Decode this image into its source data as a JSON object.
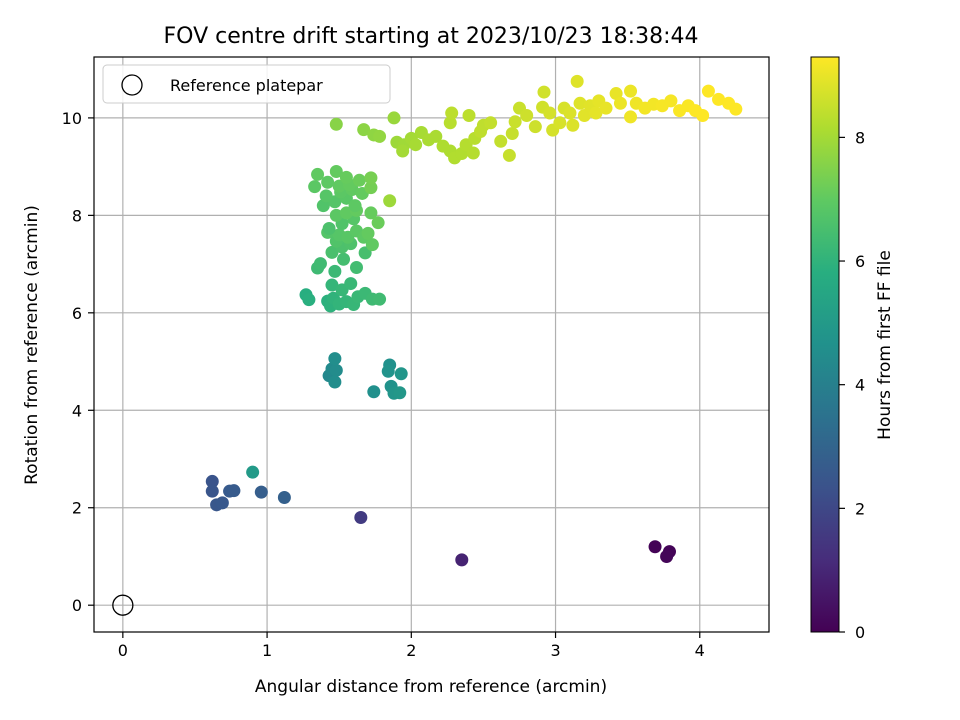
{
  "chart_data": {
    "type": "scatter",
    "title": "FOV centre drift starting at 2023/10/23 18:38:44",
    "xlabel": "Angular distance from reference (arcmin)",
    "ylabel": "Rotation from reference (arcmin)",
    "xlim": [
      -0.2,
      4.48
    ],
    "ylim": [
      -0.55,
      11.25
    ],
    "xticks": [
      0,
      1,
      2,
      3,
      4
    ],
    "yticks": [
      0,
      2,
      4,
      6,
      8,
      10
    ],
    "grid": true,
    "legend": {
      "placement": "top-left",
      "entries": [
        {
          "label": "Reference platepar",
          "marker": "open-circle"
        }
      ]
    },
    "reference_point": {
      "x": 0,
      "y": 0
    },
    "colorbar": {
      "label": "Hours from first FF file",
      "range": [
        0,
        9.3
      ],
      "ticks": [
        0,
        2,
        4,
        6,
        8
      ],
      "colormap": "viridis"
    },
    "series": [
      {
        "points": [
          [
            3.69,
            1.2,
            0.05
          ],
          [
            3.79,
            1.1,
            0.08
          ],
          [
            3.77,
            1.0,
            0.12
          ],
          [
            2.35,
            0.93,
            0.9
          ],
          [
            1.65,
            1.8,
            1.6
          ],
          [
            0.62,
            2.54,
            2.4
          ],
          [
            0.62,
            2.34,
            2.45
          ],
          [
            0.65,
            2.06,
            2.5
          ],
          [
            0.69,
            2.1,
            2.55
          ],
          [
            0.74,
            2.34,
            2.6
          ],
          [
            0.77,
            2.35,
            2.65
          ],
          [
            0.96,
            2.32,
            2.75
          ],
          [
            1.12,
            2.21,
            2.85
          ],
          [
            0.9,
            2.73,
            5.0
          ],
          [
            1.43,
            4.71,
            4.3
          ],
          [
            1.45,
            4.85,
            4.4
          ],
          [
            1.48,
            4.82,
            4.45
          ],
          [
            1.47,
            4.58,
            4.5
          ],
          [
            1.47,
            5.06,
            4.55
          ],
          [
            1.74,
            4.38,
            4.6
          ],
          [
            1.85,
            4.93,
            4.65
          ],
          [
            1.86,
            4.49,
            4.7
          ],
          [
            1.84,
            4.8,
            4.75
          ],
          [
            1.88,
            4.35,
            4.8
          ],
          [
            1.93,
            4.75,
            4.85
          ],
          [
            1.92,
            4.36,
            4.9
          ],
          [
            1.27,
            6.37,
            5.8
          ],
          [
            1.29,
            6.27,
            5.85
          ],
          [
            1.42,
            6.24,
            5.9
          ],
          [
            1.44,
            6.14,
            5.95
          ],
          [
            1.46,
            6.3,
            6.0
          ],
          [
            1.5,
            6.18,
            6.05
          ],
          [
            1.55,
            6.23,
            6.1
          ],
          [
            1.6,
            6.17,
            6.15
          ],
          [
            1.63,
            6.33,
            6.2
          ],
          [
            1.68,
            6.4,
            6.25
          ],
          [
            1.73,
            6.28,
            6.3
          ],
          [
            1.78,
            6.28,
            6.35
          ],
          [
            1.45,
            6.57,
            6.1
          ],
          [
            1.52,
            6.47,
            6.15
          ],
          [
            1.58,
            6.6,
            6.2
          ],
          [
            1.47,
            6.85,
            6.25
          ],
          [
            1.35,
            6.92,
            6.3
          ],
          [
            1.37,
            7.01,
            6.35
          ],
          [
            1.62,
            6.93,
            6.4
          ],
          [
            1.53,
            7.1,
            6.45
          ],
          [
            1.68,
            7.23,
            6.5
          ],
          [
            1.45,
            7.24,
            6.55
          ],
          [
            1.52,
            7.35,
            6.6
          ],
          [
            1.58,
            7.42,
            6.65
          ],
          [
            1.48,
            7.47,
            6.7
          ],
          [
            1.42,
            7.65,
            6.75
          ],
          [
            1.5,
            7.6,
            6.8
          ],
          [
            1.56,
            7.55,
            6.85
          ],
          [
            1.62,
            7.68,
            6.9
          ],
          [
            1.67,
            7.55,
            6.95
          ],
          [
            1.73,
            7.4,
            7.0
          ],
          [
            1.7,
            7.63,
            7.05
          ],
          [
            1.43,
            7.73,
            6.6
          ],
          [
            1.52,
            7.83,
            6.7
          ],
          [
            1.6,
            7.93,
            6.8
          ],
          [
            1.48,
            8.0,
            6.9
          ],
          [
            1.55,
            8.05,
            7.0
          ],
          [
            1.62,
            8.1,
            7.05
          ],
          [
            1.72,
            8.05,
            7.1
          ],
          [
            1.77,
            7.85,
            7.15
          ],
          [
            1.39,
            8.2,
            6.7
          ],
          [
            1.47,
            8.28,
            6.75
          ],
          [
            1.55,
            8.35,
            6.85
          ],
          [
            1.61,
            8.2,
            6.95
          ],
          [
            1.41,
            8.4,
            6.8
          ],
          [
            1.51,
            8.48,
            6.9
          ],
          [
            1.59,
            8.53,
            7.0
          ],
          [
            1.66,
            8.45,
            7.05
          ],
          [
            1.33,
            8.59,
            6.9
          ],
          [
            1.42,
            8.68,
            6.95
          ],
          [
            1.5,
            8.6,
            7.0
          ],
          [
            1.57,
            8.63,
            7.05
          ],
          [
            1.35,
            8.84,
            7.0
          ],
          [
            1.48,
            8.9,
            7.05
          ],
          [
            1.55,
            8.78,
            7.1
          ],
          [
            1.64,
            8.72,
            7.15
          ],
          [
            1.72,
            8.57,
            7.3
          ],
          [
            1.72,
            8.77,
            7.35
          ],
          [
            1.85,
            8.3,
            7.9
          ],
          [
            1.48,
            9.87,
            7.6
          ],
          [
            1.67,
            9.76,
            7.65
          ],
          [
            1.74,
            9.65,
            7.7
          ],
          [
            1.78,
            9.62,
            7.75
          ],
          [
            1.88,
            10.0,
            7.85
          ],
          [
            1.9,
            9.5,
            7.9
          ],
          [
            1.95,
            9.45,
            7.95
          ],
          [
            1.94,
            9.32,
            8.0
          ],
          [
            2.0,
            9.58,
            8.0
          ],
          [
            2.03,
            9.45,
            8.05
          ],
          [
            2.07,
            9.7,
            8.05
          ],
          [
            2.12,
            9.55,
            8.1
          ],
          [
            2.17,
            9.62,
            8.1
          ],
          [
            2.22,
            9.42,
            8.15
          ],
          [
            2.27,
            9.32,
            8.15
          ],
          [
            2.3,
            9.18,
            8.2
          ],
          [
            2.35,
            9.27,
            8.2
          ],
          [
            2.38,
            9.45,
            8.25
          ],
          [
            2.43,
            9.28,
            8.25
          ],
          [
            2.44,
            9.58,
            8.3
          ],
          [
            2.27,
            9.9,
            8.3
          ],
          [
            2.28,
            10.1,
            8.35
          ],
          [
            2.4,
            10.05,
            8.35
          ],
          [
            2.48,
            9.72,
            8.4
          ],
          [
            2.5,
            9.85,
            8.4
          ],
          [
            2.55,
            9.9,
            8.45
          ],
          [
            2.62,
            9.52,
            8.45
          ],
          [
            2.68,
            9.23,
            8.5
          ],
          [
            2.7,
            9.68,
            8.5
          ],
          [
            2.72,
            9.92,
            8.55
          ],
          [
            2.75,
            10.2,
            8.55
          ],
          [
            2.8,
            10.05,
            8.6
          ],
          [
            2.86,
            9.82,
            8.6
          ],
          [
            2.91,
            10.22,
            8.65
          ],
          [
            2.92,
            10.53,
            8.65
          ],
          [
            2.96,
            10.1,
            8.7
          ],
          [
            2.98,
            9.75,
            8.7
          ],
          [
            3.03,
            9.9,
            8.75
          ],
          [
            3.06,
            10.2,
            8.75
          ],
          [
            3.1,
            10.1,
            8.8
          ],
          [
            3.12,
            9.85,
            8.8
          ],
          [
            3.15,
            10.75,
            8.85
          ],
          [
            3.17,
            10.3,
            8.85
          ],
          [
            3.2,
            10.05,
            8.9
          ],
          [
            3.24,
            10.25,
            8.9
          ],
          [
            3.28,
            10.1,
            8.95
          ],
          [
            3.3,
            10.35,
            8.95
          ],
          [
            3.35,
            10.2,
            9.0
          ],
          [
            3.42,
            10.5,
            9.0
          ],
          [
            3.45,
            10.3,
            9.05
          ],
          [
            3.52,
            10.55,
            9.05
          ],
          [
            3.52,
            10.02,
            9.1
          ],
          [
            3.56,
            10.3,
            9.1
          ],
          [
            3.62,
            10.2,
            9.15
          ],
          [
            3.68,
            10.28,
            9.15
          ],
          [
            3.74,
            10.25,
            9.2
          ],
          [
            3.8,
            10.35,
            9.2
          ],
          [
            3.86,
            10.15,
            9.25
          ],
          [
            3.92,
            10.25,
            9.25
          ],
          [
            3.97,
            10.15,
            9.3
          ],
          [
            4.02,
            10.05,
            9.3
          ],
          [
            4.06,
            10.55,
            9.3
          ],
          [
            4.13,
            10.38,
            9.3
          ],
          [
            4.2,
            10.3,
            9.3
          ],
          [
            4.25,
            10.18,
            9.3
          ]
        ]
      }
    ]
  }
}
